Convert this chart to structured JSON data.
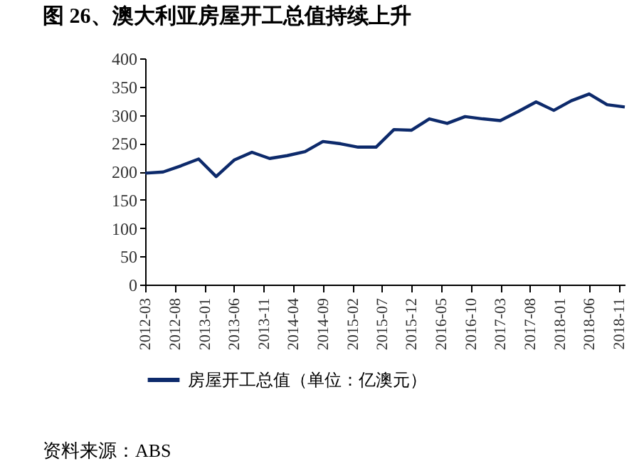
{
  "chart_data": {
    "type": "line",
    "title": "图 26、澳大利亚房屋开工总值持续上升",
    "x": [
      "2012-03",
      "2012-06",
      "2012-09",
      "2012-12",
      "2013-03",
      "2013-06",
      "2013-09",
      "2013-12",
      "2014-03",
      "2014-06",
      "2014-09",
      "2014-12",
      "2015-03",
      "2015-06",
      "2015-09",
      "2015-12",
      "2016-03",
      "2016-06",
      "2016-09",
      "2016-12",
      "2017-03",
      "2017-06",
      "2017-09",
      "2017-12",
      "2018-03",
      "2018-06",
      "2018-09",
      "2018-12"
    ],
    "series": [
      {
        "name": "房屋开工总值（单位：亿澳元）",
        "color": "#0d2a6b",
        "values": [
          197,
          199,
          210,
          222,
          191,
          220,
          234,
          223,
          228,
          235,
          253,
          249,
          243,
          243,
          274,
          273,
          293,
          285,
          297,
          293,
          290,
          306,
          323,
          308,
          325,
          337,
          318,
          314
        ]
      }
    ],
    "xlim": [
      "2012-03",
      "2018-12"
    ],
    "xticks": [
      "2012-03",
      "2012-08",
      "2013-01",
      "2013-06",
      "2013-11",
      "2014-04",
      "2014-09",
      "2015-02",
      "2015-07",
      "2015-12",
      "2016-05",
      "2016-10",
      "2017-03",
      "2017-08",
      "2018-01",
      "2018-06",
      "2018-11"
    ],
    "ylim": [
      0,
      400
    ],
    "yticks": [
      0,
      50,
      100,
      150,
      200,
      250,
      300,
      350,
      400
    ],
    "grid": false,
    "legend": "bottom",
    "marker": "none",
    "line_style": "solid",
    "annotations": [
      "资料来源：ABS"
    ]
  }
}
